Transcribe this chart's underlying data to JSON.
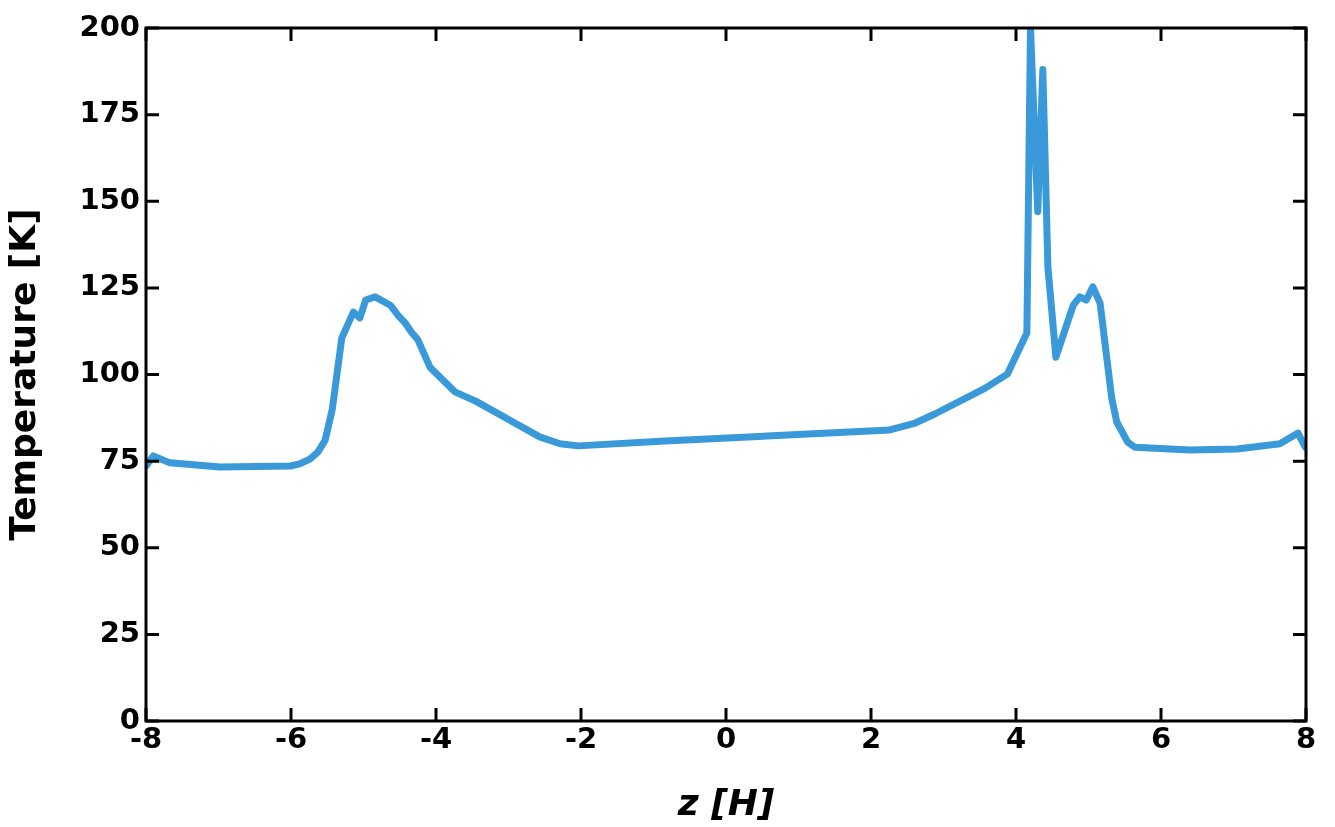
{
  "chart_data": {
    "type": "line",
    "xlabel": "z [H]",
    "ylabel": "Temperature [K]",
    "xlim": [
      -8,
      8
    ],
    "xticks": [
      -8,
      -6,
      -4,
      -2,
      0,
      2,
      4,
      6,
      8
    ],
    "ylim": [
      0,
      200
    ],
    "yticks": [
      0,
      25,
      50,
      75,
      100,
      125,
      150,
      175,
      200
    ],
    "marker": "none",
    "line_style": "solid",
    "series": [
      {
        "color": "#3a9ad9",
        "x": [
          -8,
          -7.9,
          -7.67,
          -6.98,
          -6.01,
          -5.88,
          -5.74,
          -5.63,
          -5.53,
          -5.43,
          -5.3,
          -5.14,
          -5.05,
          -4.97,
          -4.84,
          -4.63,
          -4.52,
          -4.43,
          -4.33,
          -4.25,
          -4.08,
          -3.74,
          -3.46,
          -2.57,
          -2.29,
          -2.04,
          -0.84,
          2.26,
          2.61,
          2.88,
          3.57,
          3.88,
          4.15,
          4.2,
          4.3,
          4.37,
          4.44,
          4.55,
          4.79,
          4.88,
          4.97,
          5.06,
          5.16,
          5.32,
          5.39,
          5.54,
          5.64,
          6.4,
          7.05,
          7.64,
          7.89,
          7.99
        ],
        "values": [
          73.6,
          76.5,
          74.5,
          73.3,
          73.6,
          74.2,
          75.6,
          77.6,
          81,
          90,
          110.5,
          118,
          116.3,
          121.5,
          122.4,
          120,
          117,
          115,
          112,
          110,
          102,
          95,
          92.4,
          82,
          80,
          79.4,
          80.8,
          84,
          86,
          88.6,
          96,
          100.1,
          112,
          200,
          147,
          188,
          131,
          105,
          120,
          122.4,
          121.5,
          125.3,
          120.6,
          93.2,
          86.3,
          80.5,
          79,
          78.2,
          78.5,
          80,
          83.1,
          79
        ]
      }
    ]
  }
}
